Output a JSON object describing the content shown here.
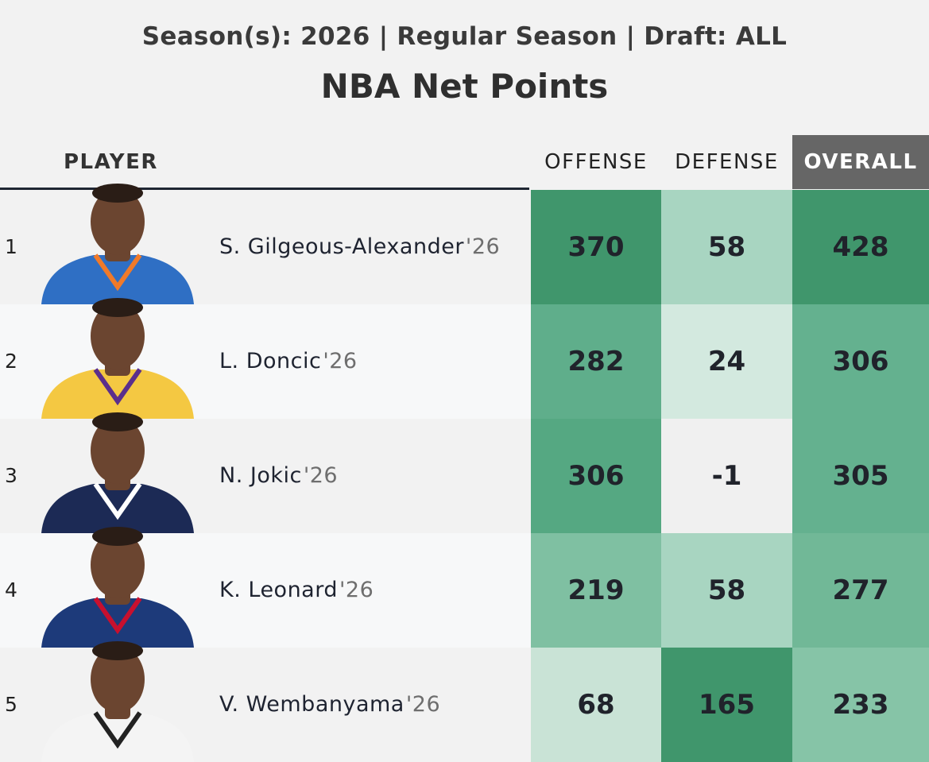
{
  "header": {
    "subtitle": "Season(s): 2026 | Regular Season | Draft: ALL",
    "title": "NBA Net Points"
  },
  "columns": {
    "player": "PLAYER",
    "offense": "OFFENSE",
    "defense": "DEFENSE",
    "overall": "OVERALL"
  },
  "colors": {
    "overall_header_bg": "#666666",
    "header_rule": "#1f2633"
  },
  "rows": [
    {
      "rank": "1",
      "name": "S. Gilgeous-Alexander",
      "year": "'26",
      "offense": "370",
      "defense": "58",
      "overall": "428",
      "jersey": "#2f6fc4",
      "jersey_trim": "#f07a2a",
      "colors": {
        "offense": "#40966c",
        "defense": "#a8d5c1",
        "overall": "#40966c"
      }
    },
    {
      "rank": "2",
      "name": "L. Doncic",
      "year": "'26",
      "offense": "282",
      "defense": "24",
      "overall": "306",
      "jersey": "#f4c842",
      "jersey_trim": "#5b2f8c",
      "colors": {
        "offense": "#5fae8b",
        "defense": "#d3e9df",
        "overall": "#64b18f"
      }
    },
    {
      "rank": "3",
      "name": "N. Jokic",
      "year": "'26",
      "offense": "306",
      "defense": "-1",
      "overall": "305",
      "jersey": "#1c2a55",
      "jersey_trim": "#ffffff",
      "colors": {
        "offense": "#55a882",
        "defense": "#f0f0f0",
        "overall": "#64b18f"
      }
    },
    {
      "rank": "4",
      "name": "K. Leonard",
      "year": "'26",
      "offense": "219",
      "defense": "58",
      "overall": "277",
      "jersey": "#1d3a7a",
      "jersey_trim": "#c8102e",
      "colors": {
        "offense": "#7fc0a2",
        "defense": "#a8d5c1",
        "overall": "#71b897"
      }
    },
    {
      "rank": "5",
      "name": "V. Wembanyama",
      "year": "'26",
      "offense": "68",
      "defense": "165",
      "overall": "233",
      "jersey": "#f4f4f4",
      "jersey_trim": "#222222",
      "colors": {
        "offense": "#c9e3d6",
        "defense": "#40966c",
        "overall": "#86c4a7"
      }
    }
  ]
}
